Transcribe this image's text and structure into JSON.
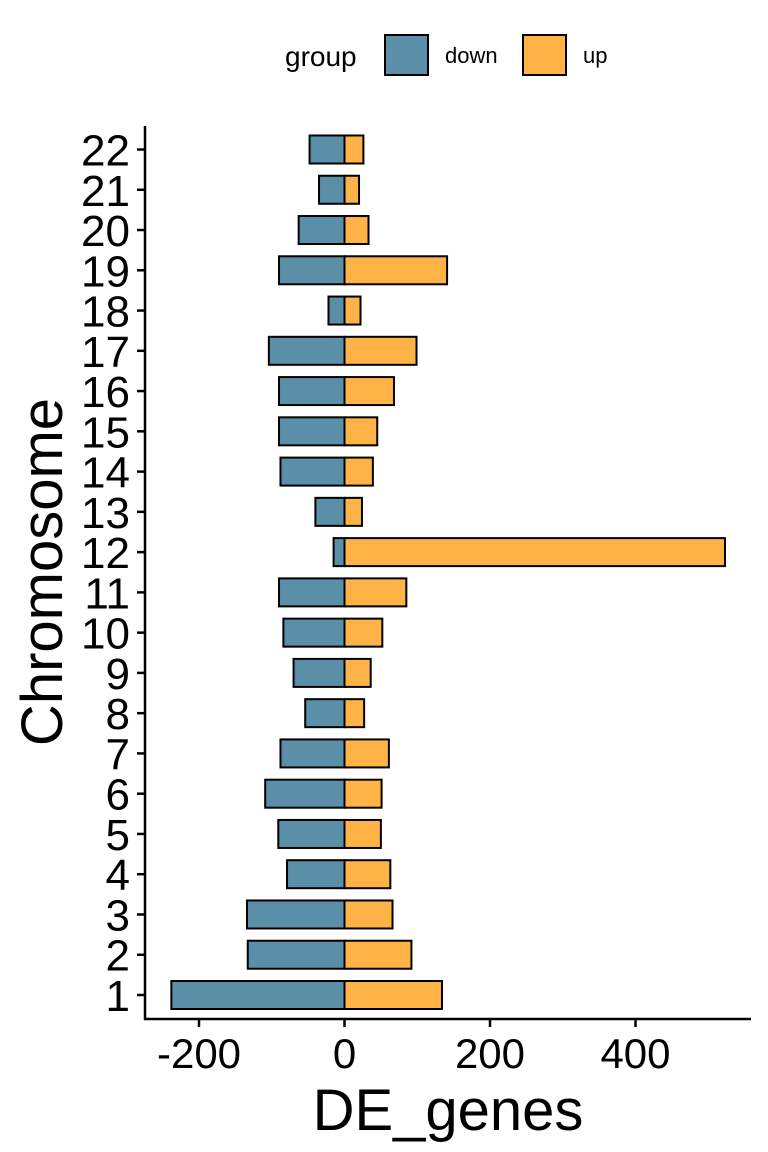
{
  "chart_data": {
    "type": "bar",
    "orientation": "horizontal",
    "stacked": "diverging",
    "categories": [
      "1",
      "2",
      "3",
      "4",
      "5",
      "6",
      "7",
      "8",
      "9",
      "10",
      "11",
      "12",
      "13",
      "14",
      "15",
      "16",
      "17",
      "18",
      "19",
      "20",
      "21",
      "22"
    ],
    "series": [
      {
        "name": "down",
        "color": "#5b8fa8",
        "values": [
          -238,
          -133,
          -134,
          -79,
          -91,
          -109,
          -88,
          -54,
          -70,
          -84,
          -90,
          -15,
          -40,
          -88,
          -90,
          -90,
          -104,
          -22,
          -90,
          -63,
          -35,
          -48
        ]
      },
      {
        "name": "up",
        "color": "#ffb347",
        "values": [
          134,
          92,
          66,
          63,
          50,
          51,
          61,
          27,
          36,
          52,
          85,
          523,
          24,
          39,
          45,
          68,
          99,
          22,
          141,
          33,
          20,
          26
        ]
      }
    ],
    "xlabel": "DE_genes",
    "ylabel": "Chromosome",
    "xlim": [
      -260,
      560
    ],
    "xticks": [
      -200,
      0,
      200,
      400
    ],
    "legend": {
      "title": "group",
      "position": "top",
      "items": [
        "down",
        "up"
      ]
    },
    "grid": false
  }
}
